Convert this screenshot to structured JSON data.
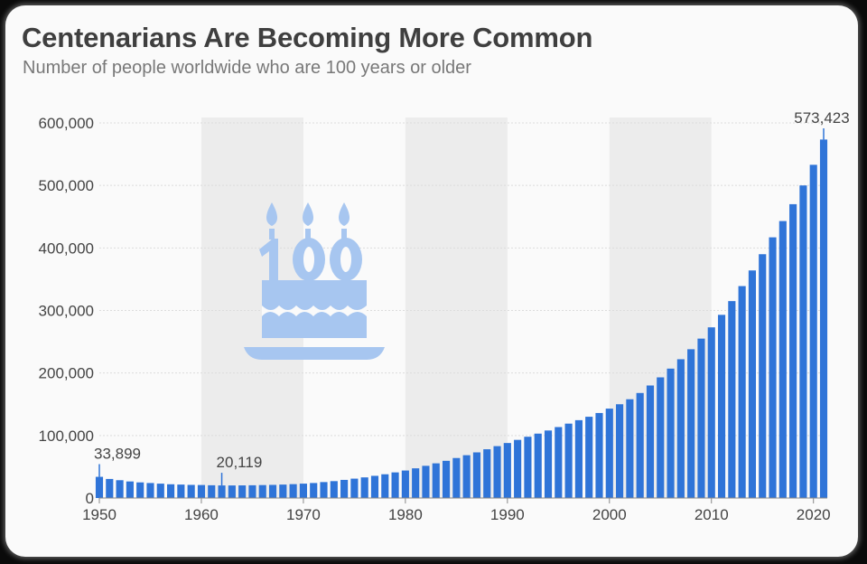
{
  "title": "Centenarians Are Becoming More Common",
  "subtitle": "Number of people worldwide who are 100 years or older",
  "chart_data": {
    "type": "bar",
    "title": "Centenarians Are Becoming More Common",
    "subtitle": "Number of people worldwide who are 100 years or older",
    "xlabel": "",
    "ylabel": "",
    "xlim": [
      1950,
      2021
    ],
    "ylim": [
      0,
      600000
    ],
    "yticks": [
      0,
      100000,
      200000,
      300000,
      400000,
      500000,
      600000
    ],
    "ytick_labels": [
      "0",
      "100,000",
      "200,000",
      "300,000",
      "400,000",
      "500,000",
      "600,000"
    ],
    "xticks": [
      1950,
      1960,
      1970,
      1980,
      1990,
      2000,
      2010,
      2020
    ],
    "xtick_labels": [
      "1950",
      "1960",
      "1970",
      "1980",
      "1990",
      "2000",
      "2010",
      "2020"
    ],
    "grid": true,
    "decade_shading": [
      [
        1960,
        1970
      ],
      [
        1980,
        1990
      ],
      [
        2000,
        2010
      ]
    ],
    "bar_color": "#2f74d8",
    "shade_color": "#ececec",
    "icon": "birthday-cake-100-icon",
    "icon_color": "#a7c6f0",
    "x": [
      1950,
      1951,
      1952,
      1953,
      1954,
      1955,
      1956,
      1957,
      1958,
      1959,
      1960,
      1961,
      1962,
      1963,
      1964,
      1965,
      1966,
      1967,
      1968,
      1969,
      1970,
      1971,
      1972,
      1973,
      1974,
      1975,
      1976,
      1977,
      1978,
      1979,
      1980,
      1981,
      1982,
      1983,
      1984,
      1985,
      1986,
      1987,
      1988,
      1989,
      1990,
      1991,
      1992,
      1993,
      1994,
      1995,
      1996,
      1997,
      1998,
      1999,
      2000,
      2001,
      2002,
      2003,
      2004,
      2005,
      2006,
      2007,
      2008,
      2009,
      2010,
      2011,
      2012,
      2013,
      2014,
      2015,
      2016,
      2017,
      2018,
      2019,
      2020
    ],
    "values": [
      33899,
      30500,
      28500,
      26500,
      25000,
      24000,
      23000,
      22000,
      21500,
      21000,
      20800,
      20400,
      20119,
      20100,
      20200,
      20400,
      20700,
      21000,
      21500,
      22200,
      23000,
      24000,
      25500,
      27000,
      29000,
      31000,
      33000,
      35500,
      38000,
      41000,
      44000,
      47500,
      51500,
      55500,
      59500,
      64000,
      68500,
      73000,
      78000,
      83000,
      88000,
      93000,
      98000,
      103000,
      108000,
      113500,
      119000,
      124500,
      130000,
      136000,
      143000,
      150000,
      158000,
      168000,
      180000,
      193000,
      207000,
      222000,
      238000,
      255000,
      273000,
      293000,
      315000,
      339000,
      364000,
      390000,
      417000,
      443000,
      470000,
      500000,
      533000
    ],
    "annotations": [
      {
        "x": 1950,
        "value": 33899,
        "label": "33,899"
      },
      {
        "x": 1962,
        "value": 20119,
        "label": "20,119"
      },
      {
        "x": 2021,
        "value": 573423,
        "label": "573,423"
      }
    ],
    "final_bar": {
      "x": 2021,
      "value": 573423
    }
  }
}
